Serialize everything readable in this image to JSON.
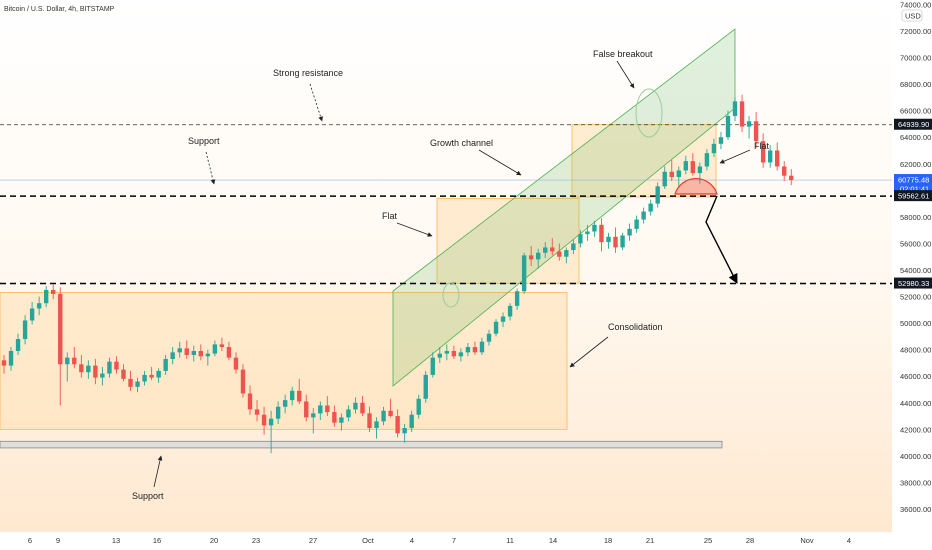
{
  "header": {
    "symbol": "Bitcoin / U.S. Dollar, 4h, BITSTAMP",
    "currency": "USD"
  },
  "chart_data": {
    "type": "candlestick",
    "title": "Bitcoin / U.S. Dollar, 4h, BITSTAMP",
    "y_axis": {
      "ylim": [
        35000,
        74000
      ],
      "unit": "USD",
      "position": "right",
      "tick_labels": [
        "36000.00",
        "38000.00",
        "40000.00",
        "42000.00",
        "44000.00",
        "46000.00",
        "48000.00",
        "50000.00",
        "52000.00",
        "54000.00",
        "56000.00",
        "58000.00",
        "60000.00",
        "62000.00",
        "64000.00",
        "66000.00",
        "68000.00",
        "70000.00",
        "72000.00",
        "74000.00"
      ]
    },
    "x_axis": {
      "tick_labels": [
        "6",
        "9",
        "13",
        "16",
        "20",
        "23",
        "27",
        "Oct",
        "4",
        "7",
        "11",
        "14",
        "18",
        "21",
        "25",
        "28",
        "Nov",
        "4"
      ]
    },
    "price_labels": [
      {
        "value": 64939.9,
        "text": "64939.90"
      },
      {
        "value": 60775.48,
        "text": "60775.48",
        "sub": "02:01:41"
      },
      {
        "value": 59562.61,
        "text": "59562.61"
      },
      {
        "value": 52980.33,
        "text": "52980.33"
      }
    ],
    "key_levels": [
      {
        "value": 64939.9,
        "style": "dashed-thin"
      },
      {
        "value": 59562.61,
        "style": "dashed-thick"
      },
      {
        "value": 52980.33,
        "style": "dashed-thick"
      },
      {
        "value": 60775.48,
        "style": "current-price"
      }
    ],
    "zones": [
      {
        "name": "Consolidation",
        "from_date": "Sep 5",
        "to_date": "Oct 15",
        "low": 42000,
        "high": 52300
      },
      {
        "name": "Flat",
        "from_date": "Oct 6",
        "to_date": "Oct 15",
        "low": 53000,
        "high": 59400
      },
      {
        "name": "Flat",
        "from_date": "Oct 15",
        "to_date": "Oct 24",
        "low": 59500,
        "high": 64950
      },
      {
        "name": "Support band",
        "from_date": "Sep 5",
        "to_date": "Oct 25",
        "low": 40600,
        "high": 41100
      }
    ],
    "candles": [
      [
        47200,
        47600,
        46200,
        46800
      ],
      [
        46800,
        48200,
        46400,
        47900
      ],
      [
        47900,
        49200,
        47600,
        48800
      ],
      [
        48800,
        50600,
        48400,
        50200
      ],
      [
        50200,
        51600,
        49900,
        51100
      ],
      [
        51100,
        52000,
        50600,
        51500
      ],
      [
        51500,
        52800,
        51200,
        52500
      ],
      [
        52500,
        52900,
        51800,
        52200
      ],
      [
        52200,
        52700,
        43800,
        46900
      ],
      [
        46900,
        47800,
        45600,
        47400
      ],
      [
        47400,
        48200,
        46600,
        46900
      ],
      [
        46900,
        47600,
        45900,
        46300
      ],
      [
        46300,
        47200,
        45800,
        46800
      ],
      [
        46800,
        47300,
        45400,
        45900
      ],
      [
        45900,
        46700,
        45300,
        46200
      ],
      [
        46200,
        47400,
        45900,
        47100
      ],
      [
        47100,
        47500,
        46200,
        46500
      ],
      [
        46500,
        46900,
        45600,
        45800
      ],
      [
        45800,
        46400,
        44900,
        45200
      ],
      [
        45200,
        45900,
        44800,
        45600
      ],
      [
        45600,
        46400,
        45300,
        46100
      ],
      [
        46100,
        46700,
        45700,
        45900
      ],
      [
        45900,
        46600,
        45500,
        46400
      ],
      [
        46400,
        47600,
        46100,
        47300
      ],
      [
        47300,
        48200,
        46900,
        47800
      ],
      [
        47800,
        48600,
        47400,
        48100
      ],
      [
        48100,
        48700,
        47300,
        47600
      ],
      [
        47600,
        48300,
        47100,
        47900
      ],
      [
        47900,
        48400,
        47200,
        47500
      ],
      [
        47500,
        48000,
        46800,
        47700
      ],
      [
        47700,
        48700,
        47500,
        48400
      ],
      [
        48400,
        48900,
        47900,
        48200
      ],
      [
        48200,
        48600,
        47200,
        47400
      ],
      [
        47400,
        47800,
        46200,
        46500
      ],
      [
        46500,
        46900,
        44400,
        44700
      ],
      [
        44700,
        45300,
        43100,
        43500
      ],
      [
        43500,
        44200,
        42600,
        43100
      ],
      [
        43100,
        43700,
        41600,
        42300
      ],
      [
        42300,
        43400,
        40200,
        42800
      ],
      [
        42800,
        44100,
        42400,
        43700
      ],
      [
        43700,
        44600,
        43200,
        44200
      ],
      [
        44200,
        45200,
        43800,
        44900
      ],
      [
        44900,
        45800,
        43900,
        44100
      ],
      [
        44100,
        44600,
        42600,
        42900
      ],
      [
        42900,
        43600,
        41700,
        43200
      ],
      [
        43200,
        44100,
        42700,
        43800
      ],
      [
        43800,
        44500,
        43000,
        43300
      ],
      [
        43300,
        43800,
        42200,
        42500
      ],
      [
        42500,
        43200,
        41900,
        42900
      ],
      [
        42900,
        43800,
        42600,
        43500
      ],
      [
        43500,
        44400,
        43200,
        44000
      ],
      [
        44000,
        44500,
        43000,
        43200
      ],
      [
        43200,
        43700,
        41800,
        42100
      ],
      [
        42100,
        42900,
        41300,
        42600
      ],
      [
        42600,
        43700,
        42300,
        43400
      ],
      [
        43400,
        44300,
        42900,
        43000
      ],
      [
        43000,
        43500,
        41400,
        41700
      ],
      [
        41700,
        42400,
        41000,
        42100
      ],
      [
        42100,
        43400,
        41800,
        43100
      ],
      [
        43100,
        44600,
        42800,
        44300
      ],
      [
        44300,
        46400,
        44000,
        46100
      ],
      [
        46100,
        47800,
        45900,
        47400
      ],
      [
        47400,
        48200,
        47000,
        47700
      ],
      [
        47700,
        48400,
        47200,
        47900
      ],
      [
        47900,
        48300,
        47300,
        47500
      ],
      [
        47500,
        48100,
        47100,
        47800
      ],
      [
        47800,
        48500,
        47500,
        48200
      ],
      [
        48200,
        48600,
        47600,
        47800
      ],
      [
        47800,
        48900,
        47600,
        48600
      ],
      [
        48600,
        49500,
        48300,
        49200
      ],
      [
        49200,
        50300,
        49000,
        50100
      ],
      [
        50100,
        50800,
        49700,
        50500
      ],
      [
        50500,
        51500,
        50200,
        51300
      ],
      [
        51300,
        52600,
        51000,
        52400
      ],
      [
        52400,
        55300,
        52200,
        55100
      ],
      [
        55100,
        55800,
        54300,
        54800
      ],
      [
        54800,
        55600,
        54100,
        55300
      ],
      [
        55300,
        56100,
        54900,
        55700
      ],
      [
        55700,
        56400,
        55100,
        55400
      ],
      [
        55400,
        56000,
        54700,
        55000
      ],
      [
        55000,
        55700,
        54500,
        55500
      ],
      [
        55500,
        56300,
        55200,
        56000
      ],
      [
        56000,
        57000,
        55700,
        56700
      ],
      [
        56700,
        57400,
        56200,
        56900
      ],
      [
        56900,
        57700,
        56500,
        57400
      ],
      [
        57400,
        57900,
        55400,
        56100
      ],
      [
        56100,
        56800,
        55600,
        56500
      ],
      [
        56500,
        57200,
        55300,
        55700
      ],
      [
        55700,
        56800,
        55500,
        56600
      ],
      [
        56600,
        57500,
        56200,
        57100
      ],
      [
        57100,
        58100,
        56800,
        57800
      ],
      [
        57800,
        58700,
        57500,
        58400
      ],
      [
        58400,
        59300,
        58100,
        59000
      ],
      [
        59000,
        60600,
        58700,
        60300
      ],
      [
        60300,
        61800,
        60100,
        61400
      ],
      [
        61400,
        62300,
        60700,
        61000
      ],
      [
        61000,
        61800,
        60200,
        61500
      ],
      [
        61500,
        62600,
        61200,
        62200
      ],
      [
        62200,
        62800,
        61100,
        61300
      ],
      [
        61300,
        62100,
        60500,
        61800
      ],
      [
        61800,
        63100,
        61500,
        62800
      ],
      [
        62800,
        63900,
        62500,
        63500
      ],
      [
        63500,
        64400,
        63100,
        64000
      ],
      [
        64000,
        66000,
        63800,
        65600
      ],
      [
        65600,
        67000,
        65200,
        66700
      ],
      [
        66700,
        67200,
        64400,
        64800
      ],
      [
        64800,
        65600,
        63900,
        65200
      ],
      [
        65200,
        65900,
        63200,
        63700
      ],
      [
        63700,
        64300,
        61700,
        62100
      ],
      [
        62100,
        63400,
        61700,
        63000
      ],
      [
        63000,
        63600,
        61500,
        61800
      ],
      [
        61800,
        62200,
        60700,
        61100
      ],
      [
        61100,
        61600,
        60400,
        60775
      ]
    ]
  },
  "annotations": {
    "strong_resistance": "Strong resistance",
    "support_top": "Support",
    "growth_channel": "Growth channel",
    "false_breakout": "False breakout",
    "flat_right": "Flat",
    "flat_mid": "Flat",
    "consolidation": "Consolidation",
    "support_bottom": "Support"
  },
  "colors": {
    "up": "#26a69a",
    "down": "#ef5350",
    "channel": "#4caf50",
    "zone_fill": "#ffe0b2",
    "zone_border": "#ffb74d",
    "projection": "#000000"
  }
}
